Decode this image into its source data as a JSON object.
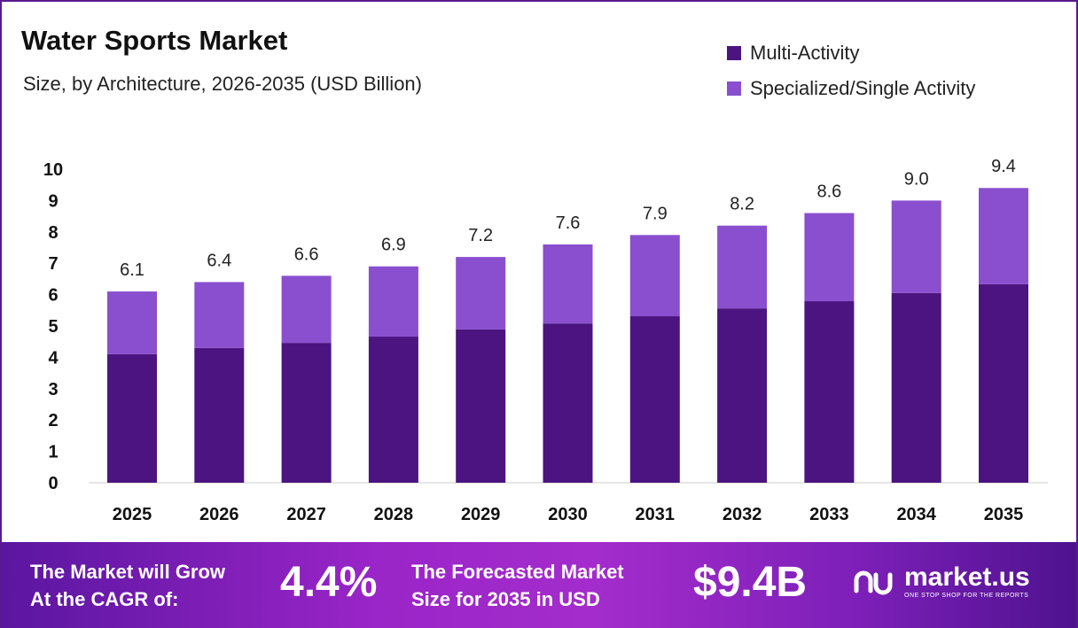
{
  "chart_data": {
    "type": "bar",
    "stacked": true,
    "title": "Water Sports Market",
    "subtitle": "Size, by Architecture, 2026-2035 (USD Billion)",
    "categories": [
      "2025",
      "2026",
      "2027",
      "2028",
      "2029",
      "2030",
      "2031",
      "2032",
      "2033",
      "2034",
      "2035"
    ],
    "series": [
      {
        "name": "Multi-Activity",
        "color": "#4b1480",
        "values": [
          4.1,
          4.3,
          4.46,
          4.66,
          4.89,
          5.08,
          5.31,
          5.56,
          5.79,
          6.05,
          6.33
        ]
      },
      {
        "name": "Specialized/Single Activity",
        "color": "#8a4fcf",
        "values": [
          2.0,
          2.1,
          2.14,
          2.24,
          2.31,
          2.52,
          2.59,
          2.64,
          2.81,
          2.95,
          3.07
        ]
      }
    ],
    "totals": [
      "6.1",
      "6.4",
      "6.6",
      "6.9",
      "7.2",
      "7.6",
      "7.9",
      "8.2",
      "8.6",
      "9.0",
      "9.4"
    ],
    "yticks": [
      "0",
      "1",
      "2",
      "3",
      "4",
      "5",
      "6",
      "7",
      "8",
      "9",
      "10"
    ],
    "ylim": [
      0,
      10
    ],
    "grid": false,
    "legend": "top-right"
  },
  "footer": {
    "cagr_text_1": "The Market will Grow",
    "cagr_text_2": "At the CAGR of:",
    "cagr": "4.4%",
    "forecast_text_1": "The Forecasted Market",
    "forecast_text_2": "Size for 2035 in USD",
    "forecast": "$9.4B",
    "logo_name": "market.us",
    "logo_tagline": "ONE STOP SHOP FOR THE REPORTS"
  }
}
